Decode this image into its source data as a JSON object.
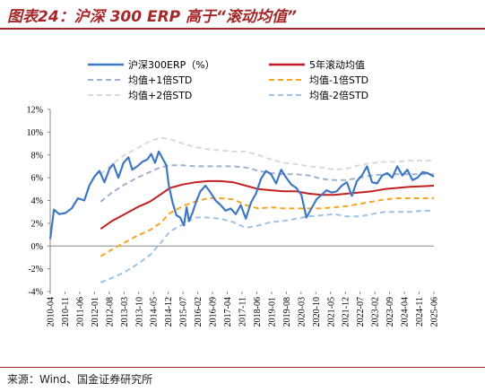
{
  "header": {
    "title": "图表24：沪深 300 ERP 高于“滚动均值”"
  },
  "footer": {
    "source": "来源：Wind、国金证券研究所"
  },
  "chart_data": {
    "type": "line",
    "title": "图表24：沪深 300 ERP 高于“滚动均值”",
    "xlabel": "",
    "ylabel": "",
    "ylim": [
      -4,
      12
    ],
    "yticks": [
      "12%",
      "10%",
      "8%",
      "6%",
      "4%",
      "2%",
      "0%",
      "-2%",
      "-4%"
    ],
    "xticks": [
      "2010-04",
      "2010-11",
      "2011-06",
      "2012-01",
      "2012-08",
      "2013-03",
      "2013-10",
      "2014-05",
      "2014-12",
      "2015-07",
      "2016-02",
      "2016-09",
      "2017-04",
      "2017-11",
      "2018-06",
      "2019-01",
      "2019-08",
      "2020-03",
      "2020-10",
      "2021-05",
      "2021-12",
      "2022-07",
      "2023-02",
      "2023-09",
      "2024-04",
      "2024-11",
      "2025-06"
    ],
    "legend_position": "top",
    "grid": false,
    "series": [
      {
        "name": "沪深300ERP（%）",
        "color": "#3f78c2",
        "style": "solid",
        "x": [
          2010.25,
          2010.4,
          2010.6,
          2010.85,
          2011.1,
          2011.35,
          2011.6,
          2011.8,
          2012.0,
          2012.2,
          2012.4,
          2012.6,
          2012.75,
          2012.95,
          2013.15,
          2013.35,
          2013.5,
          2013.7,
          2013.9,
          2014.1,
          2014.25,
          2014.4,
          2014.55,
          2014.7,
          2014.85,
          2014.95,
          2015.1,
          2015.25,
          2015.4,
          2015.55,
          2015.65,
          2015.75,
          2015.9,
          2016.05,
          2016.2,
          2016.4,
          2016.6,
          2016.8,
          2017.0,
          2017.2,
          2017.4,
          2017.6,
          2017.8,
          2018.0,
          2018.2,
          2018.4,
          2018.6,
          2018.8,
          2019.0,
          2019.2,
          2019.4,
          2019.6,
          2019.8,
          2020.0,
          2020.2,
          2020.4,
          2020.6,
          2020.8,
          2021.0,
          2021.2,
          2021.4,
          2021.6,
          2021.8,
          2022.0,
          2022.2,
          2022.4,
          2022.6,
          2022.8,
          2023.0,
          2023.2,
          2023.4,
          2023.6,
          2023.8,
          2024.0,
          2024.2,
          2024.4,
          2024.6,
          2024.8,
          2025.0,
          2025.2,
          2025.45
        ],
        "values": [
          0.6,
          3.2,
          2.8,
          2.9,
          3.3,
          4.2,
          4.0,
          5.3,
          6.1,
          6.6,
          5.6,
          6.8,
          7.2,
          6.0,
          7.3,
          7.8,
          6.7,
          7.0,
          7.4,
          7.6,
          8.1,
          7.3,
          8.3,
          7.7,
          7.1,
          5.3,
          3.8,
          2.7,
          2.5,
          1.8,
          3.4,
          2.2,
          3.0,
          4.0,
          4.8,
          5.3,
          4.7,
          4.0,
          3.6,
          3.1,
          3.3,
          2.8,
          3.6,
          2.4,
          3.8,
          4.6,
          5.9,
          6.6,
          6.3,
          5.5,
          6.7,
          6.0,
          5.4,
          5.1,
          4.5,
          2.5,
          3.3,
          4.1,
          4.5,
          4.9,
          4.7,
          4.8,
          5.3,
          5.6,
          4.4,
          5.7,
          6.2,
          7.0,
          5.6,
          5.5,
          6.2,
          6.4,
          6.0,
          7.0,
          6.2,
          6.7,
          5.8,
          6.0,
          6.5,
          6.4,
          6.1
        ]
      },
      {
        "name": "5年滚动均值",
        "color": "#c21f1f",
        "style": "solid",
        "x": [
          2012.25,
          2012.7,
          2013.2,
          2013.7,
          2014.2,
          2014.6,
          2015.0,
          2015.5,
          2016.0,
          2016.5,
          2017.0,
          2017.5,
          2018.0,
          2018.5,
          2019.0,
          2019.5,
          2020.0,
          2020.5,
          2021.0,
          2021.5,
          2022.0,
          2022.5,
          2023.0,
          2023.5,
          2024.0,
          2024.5,
          2025.0,
          2025.45
        ],
        "values": [
          1.5,
          2.2,
          2.8,
          3.4,
          3.9,
          4.5,
          5.1,
          5.4,
          5.6,
          5.7,
          5.7,
          5.6,
          5.3,
          5.0,
          4.9,
          4.8,
          4.8,
          4.6,
          4.5,
          4.5,
          4.6,
          4.7,
          4.8,
          5.0,
          5.1,
          5.2,
          5.25,
          5.3
        ]
      },
      {
        "name": "均值+1倍STD",
        "color": "#9eb2cc",
        "style": "dashed",
        "x": [
          2012.25,
          2012.7,
          2013.2,
          2013.7,
          2014.2,
          2014.6,
          2015.0,
          2015.5,
          2016.0,
          2016.5,
          2017.0,
          2017.5,
          2018.0,
          2018.5,
          2019.0,
          2019.5,
          2020.0,
          2020.5,
          2021.0,
          2021.5,
          2022.0,
          2022.5,
          2023.0,
          2023.5,
          2024.0,
          2024.5,
          2025.0,
          2025.45
        ],
        "values": [
          3.9,
          4.7,
          5.4,
          6.0,
          6.5,
          6.9,
          7.1,
          7.1,
          7.0,
          7.0,
          7.0,
          7.0,
          6.9,
          6.6,
          6.4,
          6.3,
          6.3,
          6.2,
          5.9,
          5.8,
          5.8,
          6.0,
          6.2,
          6.3,
          6.3,
          6.3,
          6.3,
          6.3
        ]
      },
      {
        "name": "均值-1倍STD",
        "color": "#f5a623",
        "style": "dashed",
        "x": [
          2012.25,
          2012.7,
          2013.2,
          2013.7,
          2014.2,
          2014.6,
          2015.0,
          2015.5,
          2016.0,
          2016.5,
          2017.0,
          2017.5,
          2018.0,
          2018.5,
          2019.0,
          2019.5,
          2020.0,
          2020.5,
          2021.0,
          2021.5,
          2022.0,
          2022.5,
          2023.0,
          2023.5,
          2024.0,
          2024.5,
          2025.0,
          2025.45
        ],
        "values": [
          -0.9,
          -0.3,
          0.3,
          0.9,
          1.4,
          2.0,
          2.9,
          3.5,
          3.9,
          4.2,
          4.2,
          4.1,
          3.6,
          3.3,
          3.4,
          3.3,
          3.3,
          3.3,
          3.3,
          3.4,
          3.5,
          3.7,
          3.9,
          4.1,
          4.2,
          4.2,
          4.2,
          4.2
        ]
      },
      {
        "name": "均值+2倍STD",
        "color": "#d9d9d9",
        "style": "dashed",
        "x": [
          2012.25,
          2012.7,
          2013.2,
          2013.7,
          2014.2,
          2014.6,
          2015.0,
          2015.5,
          2016.0,
          2016.5,
          2017.0,
          2017.5,
          2018.0,
          2018.5,
          2019.0,
          2019.5,
          2020.0,
          2020.5,
          2021.0,
          2021.5,
          2022.0,
          2022.5,
          2023.0,
          2023.5,
          2024.0,
          2024.5,
          2025.0,
          2025.45
        ],
        "values": [
          6.3,
          7.2,
          8.0,
          8.6,
          9.2,
          9.5,
          9.4,
          9.0,
          8.7,
          8.5,
          8.4,
          8.3,
          8.3,
          8.0,
          7.6,
          7.3,
          7.2,
          7.0,
          6.9,
          6.7,
          6.8,
          7.1,
          7.3,
          7.4,
          7.4,
          7.5,
          7.5,
          7.5
        ]
      },
      {
        "name": "均值-2倍STD",
        "color": "#9ec3e6",
        "style": "dashed",
        "x": [
          2012.25,
          2012.7,
          2013.2,
          2013.7,
          2014.2,
          2014.6,
          2015.0,
          2015.5,
          2016.0,
          2016.5,
          2017.0,
          2017.5,
          2018.0,
          2018.5,
          2019.0,
          2019.5,
          2020.0,
          2020.5,
          2021.0,
          2021.5,
          2022.0,
          2022.5,
          2023.0,
          2023.5,
          2024.0,
          2024.5,
          2025.0,
          2025.45
        ],
        "values": [
          -3.2,
          -2.8,
          -2.3,
          -1.6,
          -0.8,
          0.2,
          1.3,
          1.9,
          2.5,
          2.5,
          2.4,
          2.1,
          1.6,
          1.8,
          2.1,
          2.2,
          2.4,
          2.6,
          2.7,
          2.8,
          2.6,
          2.6,
          2.8,
          3.0,
          3.0,
          3.0,
          3.1,
          3.1
        ]
      }
    ]
  }
}
